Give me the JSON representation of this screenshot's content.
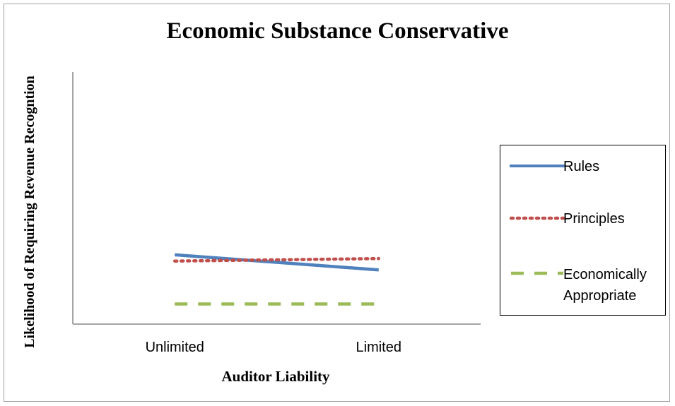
{
  "chart_data": {
    "type": "line",
    "title": "Economic Substance Conservative",
    "xlabel": "Auditor Liability",
    "ylabel": "Likelihood of Requiring Revenue Recogntion",
    "categories": [
      "Unlimited",
      "Limited"
    ],
    "ylim": [
      0,
      100
    ],
    "grid": false,
    "legend_position": "right",
    "series": [
      {
        "name": "Rules",
        "values": [
          27.5,
          21.5
        ],
        "color": "#4f81bd",
        "style": "solid"
      },
      {
        "name": "Principles",
        "values": [
          25,
          26
        ],
        "color": "#c0504d",
        "style": "dotted"
      },
      {
        "name": "Economically Appropriate",
        "values": [
          8,
          8
        ],
        "color": "#9bbb59",
        "style": "dashed"
      }
    ]
  }
}
